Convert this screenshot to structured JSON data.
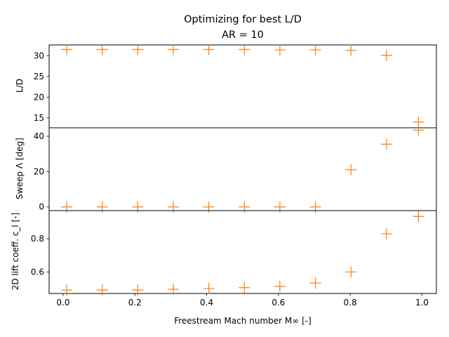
{
  "chart_data": {
    "type": "scatter",
    "title": "Optimizing for best L/D",
    "subtitle": "AR = 10",
    "xlabel": "Freestream Mach number M∞ [-]",
    "xlim": [
      -0.039,
      1.04
    ],
    "x_ticks": [
      "0.0",
      "0.2",
      "0.4",
      "0.6",
      "0.8",
      "1.0"
    ],
    "x": [
      0.01,
      0.109,
      0.208,
      0.307,
      0.406,
      0.505,
      0.604,
      0.703,
      0.802,
      0.901,
      0.99
    ],
    "marker": "+",
    "marker_color": "#ff7f0e",
    "grid": false,
    "legend": "none",
    "panels": [
      {
        "name": "L/D",
        "ylabel": "L/D",
        "ylim": [
          12.6,
          32.6
        ],
        "y_ticks": [
          "15",
          "20",
          "25",
          "30"
        ],
        "values": [
          31.5,
          31.5,
          31.5,
          31.5,
          31.5,
          31.5,
          31.4,
          31.4,
          31.3,
          30.1,
          14.0
        ]
      },
      {
        "name": "Sweep",
        "ylabel": "Sweep Λ [deg]",
        "ylim": [
          -2.1,
          44.8
        ],
        "y_ticks": [
          "0",
          "20",
          "40"
        ],
        "values": [
          0,
          0,
          0,
          0,
          0,
          0,
          0,
          0,
          21,
          35.5,
          43.5
        ]
      },
      {
        "name": "2D lift coeff.",
        "ylabel": "2D lift coeff. c_l [-]",
        "ylim": [
          0.47,
          0.97
        ],
        "y_ticks": [
          "0.6",
          "0.8"
        ],
        "values": [
          0.49,
          0.49,
          0.49,
          0.495,
          0.5,
          0.505,
          0.513,
          0.533,
          0.6,
          0.83,
          0.935
        ]
      }
    ]
  }
}
